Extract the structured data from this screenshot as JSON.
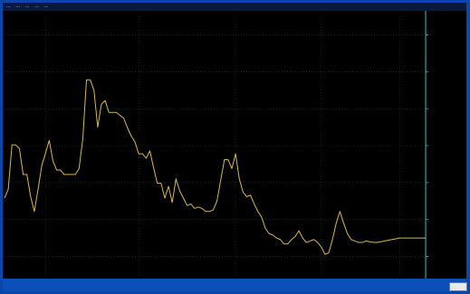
{
  "title_bar": {
    "left": "...",
    "segments": [
      "...",
      "...",
      "...",
      "..."
    ],
    "right": ""
  },
  "colors": {
    "series": "#d9b84a",
    "grid": "#1a3d3a",
    "y_axis_line": "#3fbcc4",
    "tick_label": "#7dd7de",
    "background": "#000000",
    "frame": "#0b47a8"
  },
  "chart_data": {
    "type": "line",
    "title": "",
    "xlabel": "",
    "ylabel": "",
    "grid": true,
    "y_axis_side": "right",
    "ylim": [
      0,
      7
    ],
    "xlim": [
      0,
      113
    ],
    "y_ticks": [
      0.5,
      1.5,
      2.5,
      3.5,
      4.5,
      5.5,
      6.5
    ],
    "y_tick_labels": [
      "",
      "",
      "",
      "",
      "",
      "",
      ""
    ],
    "x_ticks": [
      11,
      36,
      62,
      85,
      106
    ],
    "x_tick_labels": [
      "",
      "",
      "",
      "",
      ""
    ],
    "series": [
      {
        "values": [
          2.08,
          2.32,
          3.52,
          3.52,
          3.42,
          2.72,
          2.72,
          2.12,
          1.72,
          2.32,
          2.96,
          3.3,
          3.64,
          3.08,
          2.84,
          2.84,
          2.72,
          2.72,
          2.72,
          2.72,
          2.88,
          3.68,
          5.28,
          5.28,
          5.0,
          4.0,
          4.62,
          4.72,
          4.4,
          4.4,
          4.4,
          4.32,
          4.24,
          3.98,
          3.76,
          3.6,
          3.28,
          3.28,
          3.16,
          3.36,
          2.9,
          2.48,
          2.48,
          2.08,
          2.4,
          1.96,
          2.6,
          2.28,
          2.08,
          1.88,
          1.92,
          1.8,
          1.84,
          1.8,
          1.72,
          1.72,
          1.76,
          2.0,
          2.56,
          3.12,
          3.12,
          2.88,
          3.28,
          2.6,
          2.24,
          2.12,
          2.16,
          1.92,
          1.72,
          1.56,
          1.26,
          1.12,
          1.08,
          1.0,
          0.96,
          0.84,
          0.84,
          0.96,
          1.04,
          1.2,
          1.0,
          0.88,
          0.92,
          0.96,
          0.88,
          0.76,
          0.56,
          0.6,
          0.96,
          1.4,
          1.72,
          1.4,
          1.12,
          0.96,
          0.92,
          0.88,
          0.88,
          0.92,
          0.9,
          0.88,
          0.88,
          0.9,
          0.92,
          0.94,
          0.96,
          0.98,
          1.0,
          1.0,
          1.0,
          1.0,
          1.0,
          1.0,
          1.0,
          1.0
        ]
      }
    ]
  }
}
